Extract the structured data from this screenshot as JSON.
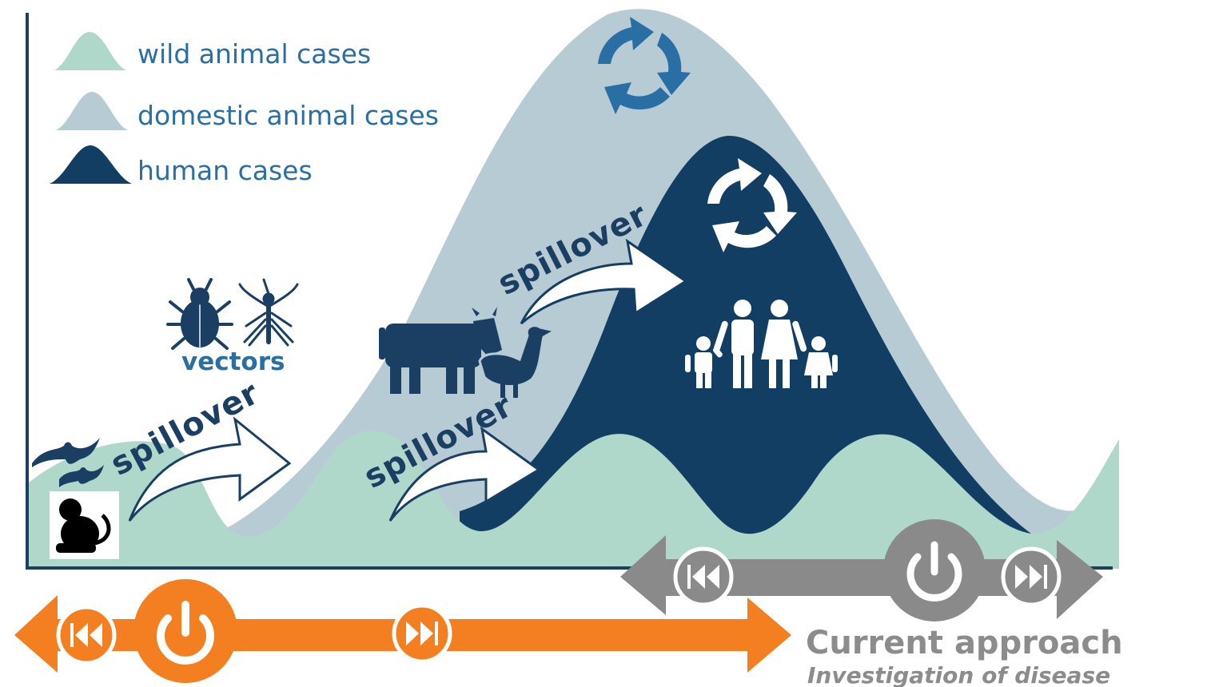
{
  "legend": {
    "wild": "wild animal cases",
    "domestic": "domestic animal cases",
    "human": "human cases"
  },
  "labels": {
    "spillover_1": "spillover",
    "spillover_2": "spillover",
    "spillover_3": "spillover",
    "vectors": "vectors"
  },
  "current_approach": {
    "title": "Current approach",
    "subtitle": "Investigation of disease"
  },
  "colors": {
    "wild": "#afd8ca",
    "domestic": "#b7cbd4",
    "human": "#123e63",
    "axis": "#1b3f63",
    "blue_text": "#2a6fa3",
    "orange": "#f47f20",
    "gray": "#8a8a8a"
  },
  "icons": [
    "cycle-arrows-icon",
    "family-icon",
    "cow-icon",
    "duck-icon",
    "beetle-icon",
    "mosquito-icon",
    "bat-icon",
    "monkey-icon",
    "power-icon",
    "rewind-icon",
    "fast-forward-icon"
  ]
}
